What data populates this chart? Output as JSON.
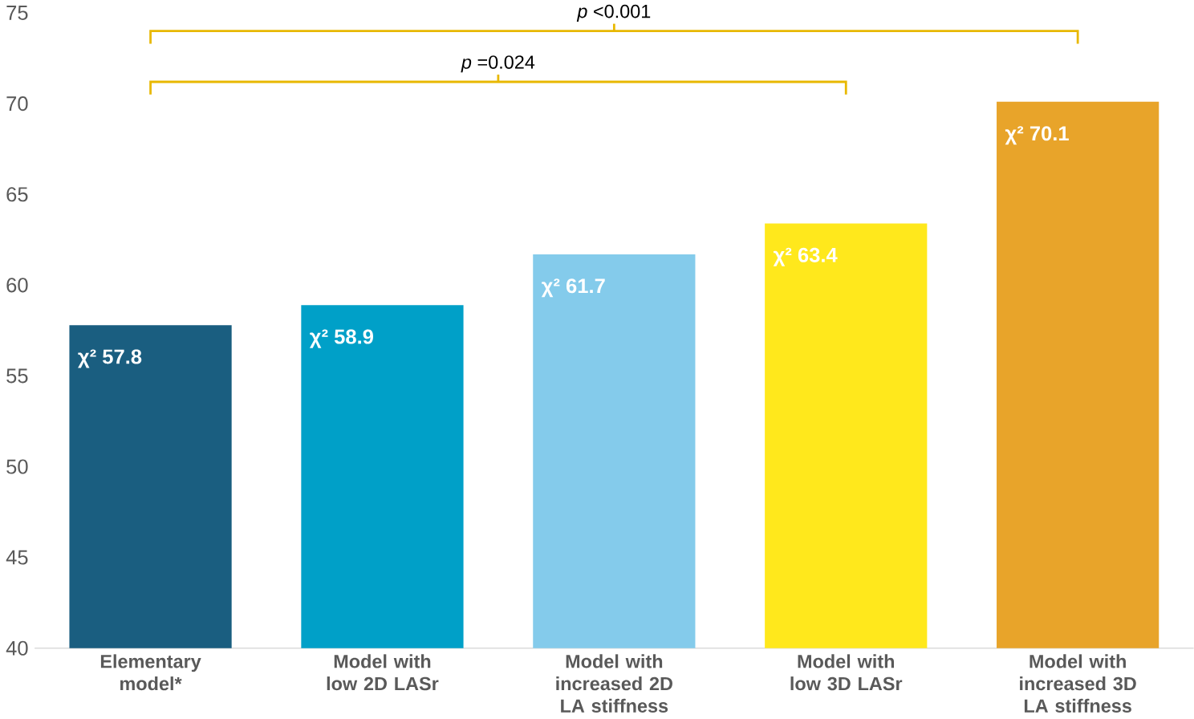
{
  "chart_data": {
    "type": "bar",
    "categories": [
      "Elementary model*",
      "Model with low 2D LASr",
      "Model with increased 2D LA stiffness",
      "Model with low 3D LASr",
      "Model with increased 3D LA stiffness"
    ],
    "values": [
      57.8,
      58.9,
      61.7,
      63.4,
      70.1
    ],
    "colors": [
      "#1a5e80",
      "#00a0c8",
      "#84cbeb",
      "#ffe81c",
      "#e8a42a"
    ],
    "value_labels": [
      "χ² 57.8",
      "χ² 58.9",
      "χ² 61.7",
      "χ² 63.4",
      "χ² 70.1"
    ],
    "ylim": [
      40,
      75
    ],
    "yticks": [
      40,
      45,
      50,
      55,
      60,
      65,
      70,
      75
    ],
    "annotations": [
      "*p* <0.001",
      "*p* =0.024"
    ]
  }
}
